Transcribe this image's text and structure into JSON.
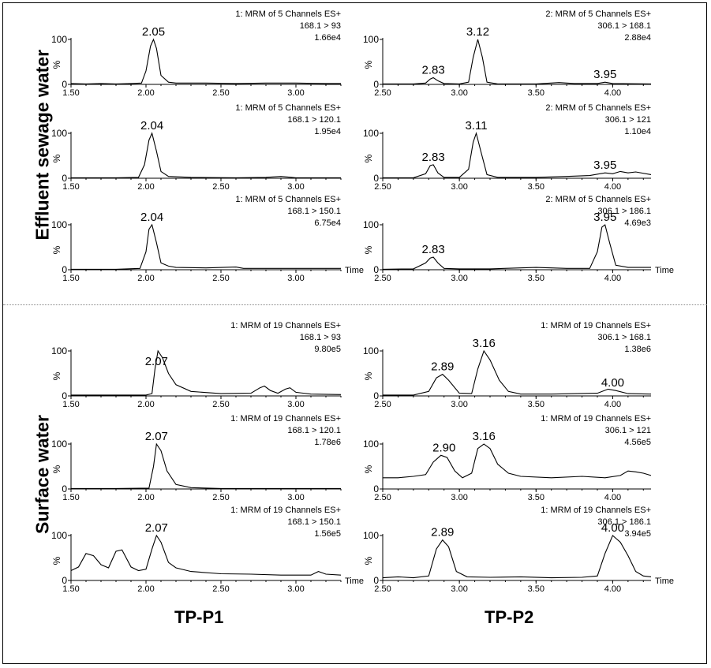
{
  "row_labels": [
    "Effluent sewage water",
    "Surface water"
  ],
  "column_labels": [
    "TP-P1",
    "TP-P2"
  ],
  "chart_data": [
    {
      "type": "line",
      "column": "TP-P1",
      "row": "Effluent sewage water",
      "channel": "1: MRM of 5 Channels ES+",
      "transition": "168.1 > 93",
      "intensity": "1.66e4",
      "xlim": [
        1.5,
        3.3
      ],
      "xticks": [
        1.5,
        2.0,
        2.5,
        3.0
      ],
      "ylim": [
        0,
        100
      ],
      "ylabel": "%",
      "xlabel": "",
      "peaks": [
        {
          "x": 2.05,
          "label": "2.05"
        }
      ],
      "trace": [
        [
          1.5,
          2
        ],
        [
          1.6,
          1
        ],
        [
          1.7,
          2
        ],
        [
          1.8,
          1
        ],
        [
          1.9,
          2
        ],
        [
          1.97,
          3
        ],
        [
          2.0,
          30
        ],
        [
          2.03,
          85
        ],
        [
          2.05,
          100
        ],
        [
          2.07,
          80
        ],
        [
          2.1,
          20
        ],
        [
          2.15,
          5
        ],
        [
          2.2,
          3
        ],
        [
          2.4,
          3
        ],
        [
          2.6,
          2
        ],
        [
          2.8,
          3
        ],
        [
          3.0,
          3
        ],
        [
          3.2,
          2
        ],
        [
          3.3,
          2
        ]
      ]
    },
    {
      "type": "line",
      "column": "TP-P2",
      "row": "Effluent sewage water",
      "channel": "2: MRM of 5 Channels ES+",
      "transition": "306.1 > 168.1",
      "intensity": "2.88e4",
      "xlim": [
        2.5,
        4.25
      ],
      "xticks": [
        2.5,
        3.0,
        3.5,
        4.0
      ],
      "ylim": [
        0,
        100
      ],
      "ylabel": "%",
      "xlabel": "",
      "peaks": [
        {
          "x": 2.83,
          "label": "2.83"
        },
        {
          "x": 3.12,
          "label": "3.12"
        },
        {
          "x": 3.95,
          "label": "3.95"
        }
      ],
      "trace": [
        [
          2.5,
          1
        ],
        [
          2.7,
          1
        ],
        [
          2.78,
          3
        ],
        [
          2.81,
          12
        ],
        [
          2.83,
          15
        ],
        [
          2.86,
          8
        ],
        [
          2.9,
          2
        ],
        [
          3.0,
          1
        ],
        [
          3.06,
          5
        ],
        [
          3.09,
          60
        ],
        [
          3.12,
          100
        ],
        [
          3.15,
          60
        ],
        [
          3.18,
          5
        ],
        [
          3.25,
          1
        ],
        [
          3.5,
          1
        ],
        [
          3.65,
          4
        ],
        [
          3.75,
          2
        ],
        [
          3.9,
          2
        ],
        [
          3.95,
          5
        ],
        [
          4.0,
          2
        ],
        [
          4.25,
          1
        ]
      ]
    },
    {
      "type": "line",
      "column": "TP-P1",
      "row": "Effluent sewage water",
      "channel": "1: MRM of 5 Channels ES+",
      "transition": "168.1 > 120.1",
      "intensity": "1.95e4",
      "xlim": [
        1.5,
        3.3
      ],
      "xticks": [
        1.5,
        2.0,
        2.5,
        3.0
      ],
      "ylim": [
        0,
        100
      ],
      "ylabel": "%",
      "xlabel": "",
      "peaks": [
        {
          "x": 2.04,
          "label": "2.04"
        }
      ],
      "trace": [
        [
          1.5,
          1
        ],
        [
          1.8,
          1
        ],
        [
          1.95,
          2
        ],
        [
          1.99,
          30
        ],
        [
          2.02,
          85
        ],
        [
          2.04,
          100
        ],
        [
          2.07,
          60
        ],
        [
          2.1,
          15
        ],
        [
          2.15,
          4
        ],
        [
          2.3,
          2
        ],
        [
          2.6,
          1
        ],
        [
          2.8,
          2
        ],
        [
          2.9,
          4
        ],
        [
          3.0,
          1
        ],
        [
          3.3,
          1
        ]
      ]
    },
    {
      "type": "line",
      "column": "TP-P2",
      "row": "Effluent sewage water",
      "channel": "2: MRM of 5 Channels ES+",
      "transition": "306.1 > 121",
      "intensity": "1.10e4",
      "xlim": [
        2.5,
        4.25
      ],
      "xticks": [
        2.5,
        3.0,
        3.5,
        4.0
      ],
      "ylim": [
        0,
        100
      ],
      "ylabel": "%",
      "xlabel": "",
      "peaks": [
        {
          "x": 2.83,
          "label": "2.83"
        },
        {
          "x": 3.11,
          "label": "3.11"
        },
        {
          "x": 3.95,
          "label": "3.95"
        }
      ],
      "trace": [
        [
          2.5,
          1
        ],
        [
          2.7,
          1
        ],
        [
          2.78,
          10
        ],
        [
          2.81,
          28
        ],
        [
          2.83,
          30
        ],
        [
          2.86,
          12
        ],
        [
          2.9,
          2
        ],
        [
          3.0,
          2
        ],
        [
          3.06,
          20
        ],
        [
          3.09,
          80
        ],
        [
          3.11,
          100
        ],
        [
          3.14,
          60
        ],
        [
          3.18,
          8
        ],
        [
          3.25,
          2
        ],
        [
          3.5,
          2
        ],
        [
          3.7,
          4
        ],
        [
          3.85,
          6
        ],
        [
          3.95,
          12
        ],
        [
          4.0,
          10
        ],
        [
          4.05,
          15
        ],
        [
          4.1,
          12
        ],
        [
          4.15,
          14
        ],
        [
          4.25,
          8
        ]
      ]
    },
    {
      "type": "line",
      "column": "TP-P1",
      "row": "Effluent sewage water",
      "channel": "1: MRM of 5 Channels ES+",
      "transition": "168.1 > 150.1",
      "intensity": "6.75e4",
      "xlim": [
        1.5,
        3.3
      ],
      "xticks": [
        1.5,
        2.0,
        2.5,
        3.0
      ],
      "ylim": [
        0,
        100
      ],
      "ylabel": "%",
      "xlabel": "Time",
      "peaks": [
        {
          "x": 2.04,
          "label": "2.04"
        }
      ],
      "trace": [
        [
          1.5,
          1
        ],
        [
          1.8,
          1
        ],
        [
          1.96,
          3
        ],
        [
          2.0,
          40
        ],
        [
          2.02,
          90
        ],
        [
          2.04,
          100
        ],
        [
          2.07,
          60
        ],
        [
          2.1,
          15
        ],
        [
          2.15,
          8
        ],
        [
          2.2,
          5
        ],
        [
          2.4,
          4
        ],
        [
          2.6,
          6
        ],
        [
          2.65,
          3
        ],
        [
          2.8,
          3
        ],
        [
          3.0,
          3
        ],
        [
          3.2,
          3
        ],
        [
          3.3,
          3
        ]
      ]
    },
    {
      "type": "line",
      "column": "TP-P2",
      "row": "Effluent sewage water",
      "channel": "2: MRM of 5 Channels ES+",
      "transition": "306.1 > 186.1",
      "intensity": "4.69e3",
      "xlim": [
        2.5,
        4.25
      ],
      "xticks": [
        2.5,
        3.0,
        3.5,
        4.0
      ],
      "ylim": [
        0,
        100
      ],
      "ylabel": "%",
      "xlabel": "Time",
      "peaks": [
        {
          "x": 2.83,
          "label": "2.83"
        },
        {
          "x": 3.95,
          "label": "3.95"
        }
      ],
      "trace": [
        [
          2.5,
          1
        ],
        [
          2.7,
          2
        ],
        [
          2.78,
          15
        ],
        [
          2.81,
          26
        ],
        [
          2.83,
          28
        ],
        [
          2.86,
          15
        ],
        [
          2.9,
          3
        ],
        [
          3.0,
          2
        ],
        [
          3.2,
          2
        ],
        [
          3.5,
          5
        ],
        [
          3.7,
          3
        ],
        [
          3.85,
          3
        ],
        [
          3.9,
          40
        ],
        [
          3.93,
          95
        ],
        [
          3.95,
          100
        ],
        [
          3.98,
          60
        ],
        [
          4.02,
          10
        ],
        [
          4.1,
          5
        ],
        [
          4.25,
          5
        ]
      ]
    },
    {
      "type": "line",
      "column": "TP-P1",
      "row": "Surface water",
      "channel": "1: MRM of 19 Channels ES+",
      "transition": "168.1 > 93",
      "intensity": "9.80e5",
      "xlim": [
        1.5,
        3.3
      ],
      "xticks": [
        1.5,
        2.0,
        2.5,
        3.0
      ],
      "ylim": [
        0,
        100
      ],
      "ylabel": "%",
      "xlabel": "",
      "peaks": [
        {
          "x": 2.07,
          "label": "2.07"
        }
      ],
      "trace": [
        [
          1.5,
          2
        ],
        [
          1.8,
          2
        ],
        [
          2.0,
          2
        ],
        [
          2.04,
          5
        ],
        [
          2.06,
          60
        ],
        [
          2.08,
          100
        ],
        [
          2.11,
          85
        ],
        [
          2.15,
          50
        ],
        [
          2.2,
          25
        ],
        [
          2.3,
          10
        ],
        [
          2.5,
          5
        ],
        [
          2.7,
          6
        ],
        [
          2.76,
          18
        ],
        [
          2.79,
          22
        ],
        [
          2.83,
          12
        ],
        [
          2.88,
          6
        ],
        [
          2.93,
          15
        ],
        [
          2.96,
          18
        ],
        [
          3.0,
          8
        ],
        [
          3.1,
          4
        ],
        [
          3.3,
          3
        ]
      ]
    },
    {
      "type": "line",
      "column": "TP-P2",
      "row": "Surface water",
      "channel": "1: MRM of 19 Channels ES+",
      "transition": "306.1 > 168.1",
      "intensity": "1.38e6",
      "xlim": [
        2.5,
        4.25
      ],
      "xticks": [
        2.5,
        3.0,
        3.5,
        4.0
      ],
      "ylim": [
        0,
        100
      ],
      "ylabel": "%",
      "xlabel": "",
      "peaks": [
        {
          "x": 2.89,
          "label": "2.89"
        },
        {
          "x": 3.16,
          "label": "3.16"
        },
        {
          "x": 4.0,
          "label": "4.00"
        }
      ],
      "trace": [
        [
          2.5,
          2
        ],
        [
          2.7,
          2
        ],
        [
          2.8,
          10
        ],
        [
          2.85,
          40
        ],
        [
          2.89,
          48
        ],
        [
          2.93,
          35
        ],
        [
          3.0,
          6
        ],
        [
          3.08,
          5
        ],
        [
          3.12,
          60
        ],
        [
          3.16,
          100
        ],
        [
          3.2,
          80
        ],
        [
          3.26,
          35
        ],
        [
          3.32,
          10
        ],
        [
          3.4,
          4
        ],
        [
          3.6,
          4
        ],
        [
          3.9,
          6
        ],
        [
          3.97,
          15
        ],
        [
          4.02,
          12
        ],
        [
          4.1,
          5
        ],
        [
          4.25,
          4
        ]
      ]
    },
    {
      "type": "line",
      "column": "TP-P1",
      "row": "Surface water",
      "channel": "1: MRM of 19 Channels ES+",
      "transition": "168.1 > 120.1",
      "intensity": "1.78e6",
      "xlim": [
        1.5,
        3.3
      ],
      "xticks": [
        1.5,
        2.0,
        2.5,
        3.0
      ],
      "ylim": [
        0,
        100
      ],
      "ylabel": "%",
      "xlabel": "",
      "peaks": [
        {
          "x": 2.07,
          "label": "2.07"
        }
      ],
      "trace": [
        [
          1.5,
          1
        ],
        [
          1.8,
          1
        ],
        [
          2.02,
          2
        ],
        [
          2.05,
          50
        ],
        [
          2.07,
          100
        ],
        [
          2.1,
          85
        ],
        [
          2.14,
          40
        ],
        [
          2.2,
          10
        ],
        [
          2.3,
          3
        ],
        [
          2.5,
          1
        ],
        [
          3.0,
          1
        ],
        [
          3.3,
          1
        ]
      ]
    },
    {
      "type": "line",
      "column": "TP-P2",
      "row": "Surface water",
      "channel": "1: MRM of 19 Channels ES+",
      "transition": "306.1 > 121",
      "intensity": "4.56e5",
      "xlim": [
        2.5,
        4.25
      ],
      "xticks": [
        2.5,
        3.0,
        3.5,
        4.0
      ],
      "ylim": [
        0,
        100
      ],
      "ylabel": "%",
      "xlabel": "",
      "peaks": [
        {
          "x": 2.9,
          "label": "2.90"
        },
        {
          "x": 3.16,
          "label": "3.16"
        }
      ],
      "trace": [
        [
          2.5,
          25
        ],
        [
          2.6,
          25
        ],
        [
          2.7,
          28
        ],
        [
          2.78,
          32
        ],
        [
          2.83,
          60
        ],
        [
          2.88,
          75
        ],
        [
          2.92,
          70
        ],
        [
          2.97,
          40
        ],
        [
          3.02,
          25
        ],
        [
          3.08,
          35
        ],
        [
          3.12,
          90
        ],
        [
          3.16,
          100
        ],
        [
          3.2,
          90
        ],
        [
          3.25,
          55
        ],
        [
          3.32,
          35
        ],
        [
          3.4,
          28
        ],
        [
          3.6,
          25
        ],
        [
          3.8,
          28
        ],
        [
          3.95,
          25
        ],
        [
          4.05,
          30
        ],
        [
          4.1,
          40
        ],
        [
          4.15,
          38
        ],
        [
          4.2,
          35
        ],
        [
          4.25,
          30
        ]
      ]
    },
    {
      "type": "line",
      "column": "TP-P1",
      "row": "Surface water",
      "channel": "1: MRM of 19 Channels ES+",
      "transition": "168.1 > 150.1",
      "intensity": "1.56e5",
      "xlim": [
        1.5,
        3.3
      ],
      "xticks": [
        1.5,
        2.0,
        2.5,
        3.0
      ],
      "ylim": [
        0,
        100
      ],
      "ylabel": "%",
      "xlabel": "Time",
      "peaks": [
        {
          "x": 2.07,
          "label": "2.07"
        }
      ],
      "trace": [
        [
          1.5,
          22
        ],
        [
          1.55,
          30
        ],
        [
          1.6,
          60
        ],
        [
          1.65,
          55
        ],
        [
          1.7,
          35
        ],
        [
          1.75,
          28
        ],
        [
          1.8,
          65
        ],
        [
          1.84,
          68
        ],
        [
          1.9,
          30
        ],
        [
          1.95,
          22
        ],
        [
          2.0,
          25
        ],
        [
          2.04,
          70
        ],
        [
          2.07,
          100
        ],
        [
          2.1,
          85
        ],
        [
          2.15,
          40
        ],
        [
          2.2,
          28
        ],
        [
          2.3,
          20
        ],
        [
          2.5,
          15
        ],
        [
          2.7,
          14
        ],
        [
          2.9,
          12
        ],
        [
          3.1,
          12
        ],
        [
          3.15,
          20
        ],
        [
          3.2,
          14
        ],
        [
          3.3,
          12
        ]
      ]
    },
    {
      "type": "line",
      "column": "TP-P2",
      "row": "Surface water",
      "channel": "1: MRM of 19 Channels ES+",
      "transition": "306.1 > 186.1",
      "intensity": "3.94e5",
      "xlim": [
        2.5,
        4.25
      ],
      "xticks": [
        2.5,
        3.0,
        3.5,
        4.0
      ],
      "ylim": [
        0,
        100
      ],
      "ylabel": "%",
      "xlabel": "Time",
      "peaks": [
        {
          "x": 2.89,
          "label": "2.89"
        },
        {
          "x": 4.0,
          "label": "4.00"
        }
      ],
      "trace": [
        [
          2.5,
          6
        ],
        [
          2.6,
          8
        ],
        [
          2.7,
          6
        ],
        [
          2.8,
          10
        ],
        [
          2.85,
          70
        ],
        [
          2.89,
          90
        ],
        [
          2.93,
          75
        ],
        [
          2.98,
          20
        ],
        [
          3.05,
          8
        ],
        [
          3.2,
          7
        ],
        [
          3.4,
          8
        ],
        [
          3.6,
          6
        ],
        [
          3.8,
          7
        ],
        [
          3.9,
          10
        ],
        [
          3.95,
          60
        ],
        [
          4.0,
          100
        ],
        [
          4.05,
          85
        ],
        [
          4.1,
          55
        ],
        [
          4.15,
          20
        ],
        [
          4.2,
          10
        ],
        [
          4.25,
          8
        ]
      ]
    }
  ]
}
